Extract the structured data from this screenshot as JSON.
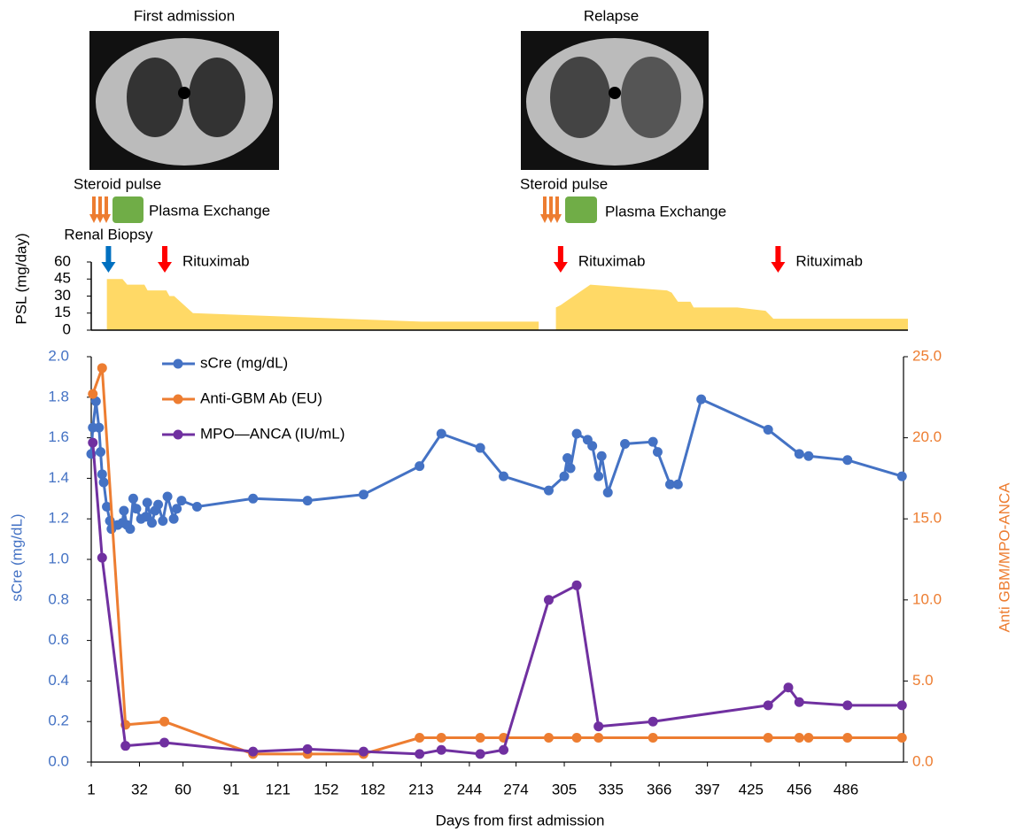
{
  "images": [
    "First admission",
    "Relapse"
  ],
  "chart_data": [
    {
      "type": "area",
      "y_label": "PSL (mg/day)",
      "color": "#ffd966",
      "xlim": [
        1,
        523
      ],
      "ylim": [
        0,
        60
      ],
      "yticks": [
        0,
        15,
        30,
        45,
        60
      ],
      "x": [
        11,
        21,
        24,
        35,
        37,
        49,
        51,
        54,
        66,
        212,
        287,
        292,
        298,
        301,
        320,
        369,
        372,
        376,
        384,
        386,
        414,
        432,
        437,
        523
      ],
      "values": [
        45,
        45,
        40,
        40,
        35,
        35,
        30,
        30,
        15,
        7.5,
        7.5,
        null,
        20,
        22,
        40,
        35,
        33,
        25,
        25,
        20,
        20,
        17,
        10,
        10
      ],
      "annotations": [
        "Steroid pulse",
        "Plasma Exchange",
        "Steroid pulse",
        "Plasma Exchange"
      ],
      "events": [
        {
          "label": "Renal Biopsy",
          "x": 12,
          "color": "#0070c0"
        },
        {
          "label": "Rituximab",
          "x": 48,
          "color": "#ff0000"
        },
        {
          "label": "Rituximab",
          "x": 301,
          "color": "#ff0000"
        },
        {
          "label": "Rituximab",
          "x": 440,
          "color": "#ff0000"
        }
      ]
    },
    {
      "type": "line",
      "x_label": "Days from first admission",
      "y_label": "sCre (mg/dL)",
      "y2_label": "Anti GBM/MPO-ANCA",
      "legend": "upper left",
      "xlim": [
        1,
        523
      ],
      "xticks": [
        1,
        32,
        60,
        91,
        121,
        152,
        182,
        213,
        244,
        274,
        305,
        335,
        366,
        397,
        425,
        456,
        486
      ],
      "ylim": [
        0,
        2
      ],
      "yticks": [
        {
          "value": 0,
          "label": "0.0"
        },
        0.2,
        0.4,
        0.6,
        0.8,
        {
          "value": 1,
          "label": "1.0"
        },
        1.2,
        1.4,
        1.6,
        1.8,
        {
          "value": 2,
          "label": "2.0"
        }
      ],
      "y2lim": [
        0,
        25
      ],
      "y2ticks": [
        {
          "value": 0,
          "label": "0.0"
        },
        {
          "value": 5,
          "label": "5.0"
        },
        {
          "value": 10,
          "label": "10.0"
        },
        {
          "value": 15,
          "label": "15.0"
        },
        {
          "value": 20,
          "label": "20.0"
        },
        {
          "value": 25,
          "label": "25.0"
        }
      ],
      "series": [
        {
          "name": "sCre (mg/dL)",
          "color": "#4472c4",
          "x": [
            1,
            2,
            4,
            6,
            7,
            8,
            9,
            11,
            13,
            14,
            18,
            21,
            22,
            24,
            26,
            28,
            30,
            33,
            36,
            37,
            40,
            42,
            44,
            47,
            50,
            54,
            56,
            59,
            69,
            105,
            140,
            176,
            212,
            226,
            251,
            266,
            295,
            305,
            307,
            309,
            313,
            320,
            323,
            327,
            329,
            333,
            344,
            362,
            365,
            373,
            378,
            393,
            436,
            456,
            462,
            487,
            522
          ],
          "values": [
            1.52,
            1.65,
            1.78,
            1.65,
            1.53,
            1.42,
            1.38,
            1.26,
            1.19,
            1.15,
            1.17,
            1.18,
            1.24,
            1.17,
            1.15,
            1.3,
            1.25,
            1.2,
            1.21,
            1.28,
            1.18,
            1.24,
            1.27,
            1.19,
            1.31,
            1.2,
            1.25,
            1.29,
            1.26,
            1.3,
            1.29,
            1.32,
            1.46,
            1.62,
            1.55,
            1.41,
            1.34,
            1.41,
            1.5,
            1.45,
            1.62,
            1.59,
            1.56,
            1.41,
            1.51,
            1.33,
            1.57,
            1.58,
            1.53,
            1.37,
            1.37,
            1.79,
            1.64,
            1.52,
            1.51,
            1.49,
            1.41
          ]
        },
        {
          "name": "Anti-GBM Ab (EU)",
          "color": "#ed7d31",
          "axis": "y2",
          "x": [
            2,
            8,
            23,
            48,
            105,
            140,
            176,
            212,
            226,
            251,
            266,
            295,
            313,
            327,
            362,
            436,
            456,
            462,
            487,
            522
          ],
          "values": [
            22.7,
            24.3,
            2.3,
            2.5,
            0.5,
            0.5,
            0.5,
            1.5,
            1.5,
            1.5,
            1.5,
            1.5,
            1.5,
            1.5,
            1.5,
            1.5,
            1.5,
            1.5,
            1.5,
            1.5
          ]
        },
        {
          "name": "MPO―ANCA (IU/mL)",
          "color": "#7030a0",
          "axis": "y2",
          "x": [
            2,
            8,
            23,
            48,
            105,
            140,
            176,
            212,
            226,
            251,
            266,
            295,
            313,
            327,
            362,
            436,
            449,
            456,
            487,
            522
          ],
          "values": [
            19.7,
            12.6,
            1.0,
            1.2,
            0.65,
            0.8,
            0.65,
            0.5,
            0.75,
            0.5,
            0.75,
            10.0,
            10.9,
            2.2,
            2.5,
            3.5,
            4.6,
            3.7,
            3.5,
            3.5
          ]
        }
      ]
    }
  ]
}
